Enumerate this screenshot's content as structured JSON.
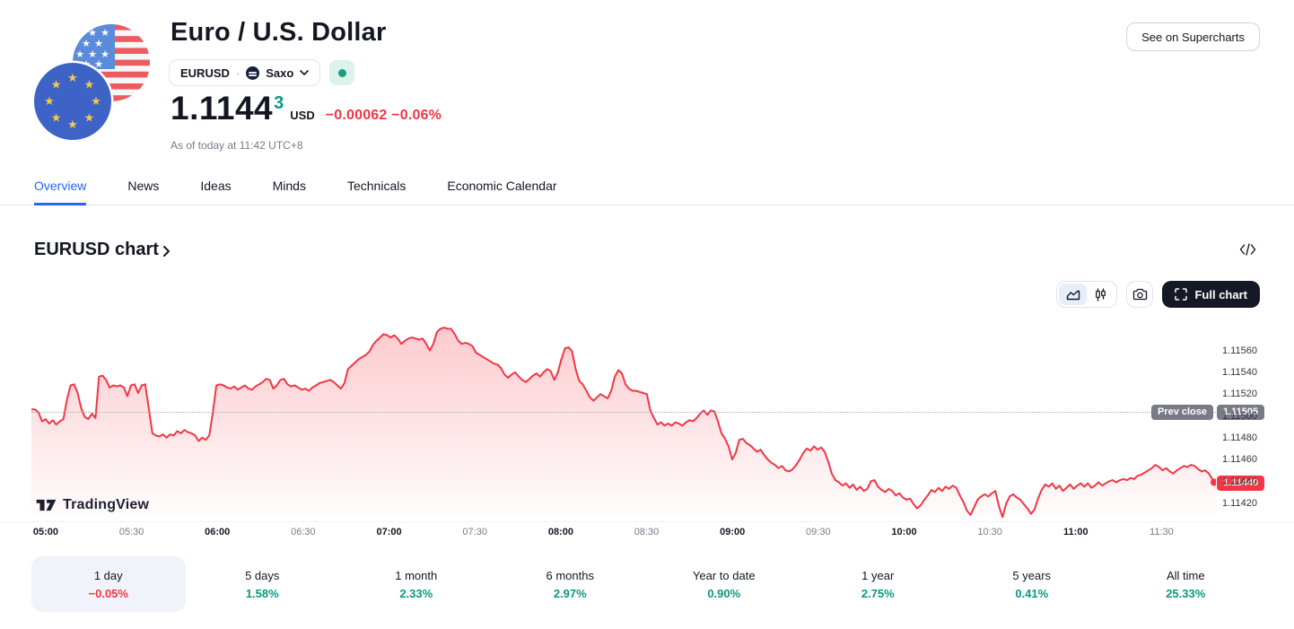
{
  "header": {
    "title": "Euro / U.S. Dollar",
    "symbol_button": {
      "symbol": "EURUSD",
      "separator": "·",
      "exchange": "Saxo"
    },
    "market_status": "open",
    "price": {
      "value": "1.1144",
      "sup": "3",
      "currency": "USD",
      "change": "−0.00062",
      "change_pct": "−0.06%"
    },
    "as_of": "As of today at 11:42 UTC+8",
    "supercharts_button": "See on Supercharts"
  },
  "tabs": {
    "items": [
      {
        "label": "Overview",
        "active": true
      },
      {
        "label": "News",
        "active": false
      },
      {
        "label": "Ideas",
        "active": false
      },
      {
        "label": "Minds",
        "active": false
      },
      {
        "label": "Technicals",
        "active": false
      },
      {
        "label": "Economic Calendar",
        "active": false
      }
    ]
  },
  "section": {
    "title": "EURUSD chart"
  },
  "toolbar": {
    "full_chart_label": "Full chart"
  },
  "watermark": "TradingView",
  "chart_data": {
    "type": "area",
    "symbol": "EURUSD",
    "title": "EURUSD chart",
    "line_color": "#F23645",
    "x_axis": {
      "t_min": -5,
      "t_max": 409,
      "labels": [
        {
          "label": "05:00",
          "t": 0
        },
        {
          "label": "05:30",
          "t": 30
        },
        {
          "label": "06:00",
          "t": 60
        },
        {
          "label": "06:30",
          "t": 90
        },
        {
          "label": "07:00",
          "t": 120
        },
        {
          "label": "07:30",
          "t": 150
        },
        {
          "label": "08:00",
          "t": 180
        },
        {
          "label": "08:30",
          "t": 210
        },
        {
          "label": "09:00",
          "t": 240
        },
        {
          "label": "09:30",
          "t": 270
        },
        {
          "label": "10:00",
          "t": 300
        },
        {
          "label": "10:30",
          "t": 330
        },
        {
          "label": "11:00",
          "t": 360
        },
        {
          "label": "11:30",
          "t": 390
        }
      ]
    },
    "y_axis": {
      "min": 1.11405,
      "max": 1.11592,
      "ticks": [
        1.1156,
        1.1154,
        1.1152,
        1.115,
        1.1148,
        1.1146,
        1.1144,
        1.1142
      ]
    },
    "prev_close": {
      "label": "Prev close",
      "value": 1.11505
    },
    "last": {
      "value": 1.1144
    },
    "series": [
      1.11507,
      1.11507,
      1.11504,
      1.11496,
      1.11498,
      1.11494,
      1.11497,
      1.11493,
      1.11496,
      1.11498,
      1.11516,
      1.11529,
      1.1153,
      1.11522,
      1.11508,
      1.115,
      1.11498,
      1.11503,
      1.11499,
      1.11537,
      1.11538,
      1.11534,
      1.11527,
      1.11529,
      1.11528,
      1.11529,
      1.11527,
      1.11519,
      1.11529,
      1.1153,
      1.11522,
      1.11529,
      1.1153,
      1.11508,
      1.11485,
      1.11483,
      1.11482,
      1.11484,
      1.11481,
      1.11484,
      1.11483,
      1.11487,
      1.11485,
      1.11488,
      1.11486,
      1.11485,
      1.11483,
      1.11478,
      1.11481,
      1.11479,
      1.11483,
      1.11504,
      1.11529,
      1.1153,
      1.11529,
      1.11527,
      1.11526,
      1.11528,
      1.11525,
      1.11527,
      1.11529,
      1.11526,
      1.11525,
      1.11528,
      1.1153,
      1.11532,
      1.11535,
      1.11534,
      1.11526,
      1.11529,
      1.11534,
      1.11535,
      1.1153,
      1.11528,
      1.11529,
      1.11527,
      1.11525,
      1.11526,
      1.11524,
      1.11527,
      1.11529,
      1.11531,
      1.11532,
      1.11533,
      1.11534,
      1.11532,
      1.11529,
      1.11526,
      1.11531,
      1.11544,
      1.11547,
      1.1155,
      1.11553,
      1.11555,
      1.11557,
      1.1156,
      1.11566,
      1.1157,
      1.11573,
      1.11576,
      1.11575,
      1.11573,
      1.11575,
      1.11572,
      1.11567,
      1.1157,
      1.11572,
      1.11573,
      1.11572,
      1.11571,
      1.11572,
      1.11567,
      1.11561,
      1.11567,
      1.11578,
      1.11581,
      1.11582,
      1.11581,
      1.11581,
      1.11576,
      1.1157,
      1.11567,
      1.11568,
      1.11567,
      1.11565,
      1.11559,
      1.11557,
      1.11555,
      1.11553,
      1.11551,
      1.11549,
      1.11548,
      1.11545,
      1.11539,
      1.11536,
      1.11539,
      1.11541,
      1.11537,
      1.11534,
      1.11532,
      1.11535,
      1.11538,
      1.1154,
      1.11537,
      1.11541,
      1.11544,
      1.11542,
      1.11534,
      1.11541,
      1.11553,
      1.11563,
      1.11564,
      1.1156,
      1.11544,
      1.11533,
      1.1153,
      1.11524,
      1.11518,
      1.11515,
      1.11518,
      1.11521,
      1.11519,
      1.11517,
      1.11524,
      1.11537,
      1.11543,
      1.1154,
      1.1153,
      1.11526,
      1.11524,
      1.11524,
      1.11523,
      1.11522,
      1.11521,
      1.11506,
      1.11499,
      1.11493,
      1.11495,
      1.11492,
      1.11494,
      1.11492,
      1.11495,
      1.11494,
      1.11492,
      1.11495,
      1.11497,
      1.11496,
      1.11499,
      1.11503,
      1.11506,
      1.11502,
      1.11506,
      1.11505,
      1.11496,
      1.11485,
      1.1148,
      1.11473,
      1.11461,
      1.11467,
      1.11479,
      1.1148,
      1.11476,
      1.11474,
      1.11471,
      1.11468,
      1.1147,
      1.11465,
      1.11461,
      1.11458,
      1.11456,
      1.11453,
      1.11455,
      1.11451,
      1.1145,
      1.11452,
      1.11456,
      1.11461,
      1.11467,
      1.11471,
      1.11469,
      1.11473,
      1.1147,
      1.11472,
      1.11468,
      1.11459,
      1.11448,
      1.11442,
      1.1144,
      1.11437,
      1.11439,
      1.11435,
      1.11438,
      1.11433,
      1.11436,
      1.11432,
      1.11434,
      1.11441,
      1.11442,
      1.11436,
      1.11433,
      1.11431,
      1.11434,
      1.11432,
      1.11428,
      1.1143,
      1.11426,
      1.11424,
      1.11425,
      1.1142,
      1.11416,
      1.11419,
      1.11424,
      1.11428,
      1.11433,
      1.11431,
      1.11435,
      1.11432,
      1.11436,
      1.11434,
      1.11437,
      1.11435,
      1.11428,
      1.11422,
      1.11414,
      1.1141,
      1.11417,
      1.11424,
      1.11427,
      1.11429,
      1.11427,
      1.1143,
      1.11432,
      1.11418,
      1.11408,
      1.1142,
      1.11427,
      1.11429,
      1.11426,
      1.11424,
      1.1142,
      1.11416,
      1.11411,
      1.11415,
      1.11425,
      1.11433,
      1.11438,
      1.11436,
      1.11439,
      1.11434,
      1.11437,
      1.11432,
      1.11435,
      1.11438,
      1.11434,
      1.11437,
      1.11439,
      1.11436,
      1.11439,
      1.11435,
      1.11437,
      1.1144,
      1.11437,
      1.11439,
      1.11441,
      1.11442,
      1.1144,
      1.11442,
      1.11443,
      1.11442,
      1.11444,
      1.11443,
      1.11446,
      1.11447,
      1.11449,
      1.11451,
      1.11453,
      1.11456,
      1.11454,
      1.11451,
      1.11453,
      1.1145,
      1.11448,
      1.11451,
      1.11453,
      1.11455,
      1.11454,
      1.11456,
      1.11455,
      1.11452,
      1.1145,
      1.11451,
      1.11448,
      1.11443,
      1.1144
    ]
  },
  "periods": {
    "items": [
      {
        "label": "1 day",
        "value": "−0.05%",
        "selected": true
      },
      {
        "label": "5 days",
        "value": "1.58%",
        "selected": false
      },
      {
        "label": "1 month",
        "value": "2.33%",
        "selected": false
      },
      {
        "label": "6 months",
        "value": "2.97%",
        "selected": false
      },
      {
        "label": "Year to date",
        "value": "0.90%",
        "selected": false
      },
      {
        "label": "1 year",
        "value": "2.75%",
        "selected": false
      },
      {
        "label": "5 years",
        "value": "0.41%",
        "selected": false
      },
      {
        "label": "All time",
        "value": "25.33%",
        "selected": false
      }
    ]
  }
}
